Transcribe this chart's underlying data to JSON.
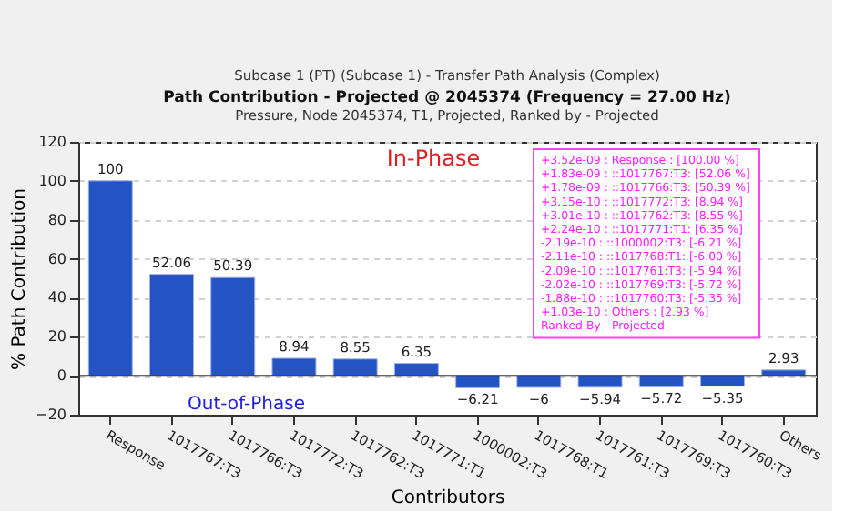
{
  "chart_data": {
    "type": "bar",
    "title": "Path Contribution - Projected @ 2045374 (Frequency = 27.00 Hz)",
    "subtitle": "Pressure, Node 2045374, T1, Projected, Ranked by - Projected",
    "xlabel": "Contributors",
    "ylabel": "% Path Contribution",
    "categories": [
      "Response",
      "1017767:T3",
      "1017766:T3",
      "1017772:T3",
      "1017762:T3",
      "1017771:T1",
      "1000002:T3",
      "1017768:T1",
      "1017761:T3",
      "1017769:T3",
      "1017760:T3",
      "Others"
    ],
    "series": [
      {
        "color": "#2453c4",
        "values": [
          100,
          52.06,
          50.39,
          8.94,
          8.55,
          6.35,
          -6.21,
          -6.0,
          -5.94,
          -5.72,
          -5.35,
          2.93
        ]
      }
    ],
    "ylim": [
      -20,
      120
    ],
    "yticks": [
      -20,
      0,
      20,
      40,
      60,
      80,
      100,
      120
    ],
    "grid": "y",
    "data_labels": true,
    "annotations": [
      "Subcase 1 (PT) (Subcase 1)  -  Transfer Path Analysis (Complex)",
      "In-Phase",
      "Out-of-Phase",
      "+3.52e-09 : Response    : [100.00 %]",
      "+1.83e-09 : ::1017767:T3: [52.06 %]",
      "+1.78e-09 : ::1017766:T3: [50.39 %]",
      "+3.15e-10 : ::1017772:T3: [8.94 %]",
      "+3.01e-10 : ::1017762:T3: [8.55 %]",
      "+2.24e-10 : ::1017771:T1: [6.35 %]",
      "-2.19e-10 : ::1000002:T3: [-6.21 %]",
      "-2.11e-10 : ::1017768:T1: [-6.00 %]",
      "-2.09e-10 : ::1017761:T3: [-5.94 %]",
      "-2.02e-10 : ::1017769:T3: [-5.72 %]",
      "-1.88e-10 : ::1017760:T3: [-5.35 %]",
      "+1.03e-10 : Others      : [2.93 %]",
      "Ranked By - Projected"
    ]
  }
}
